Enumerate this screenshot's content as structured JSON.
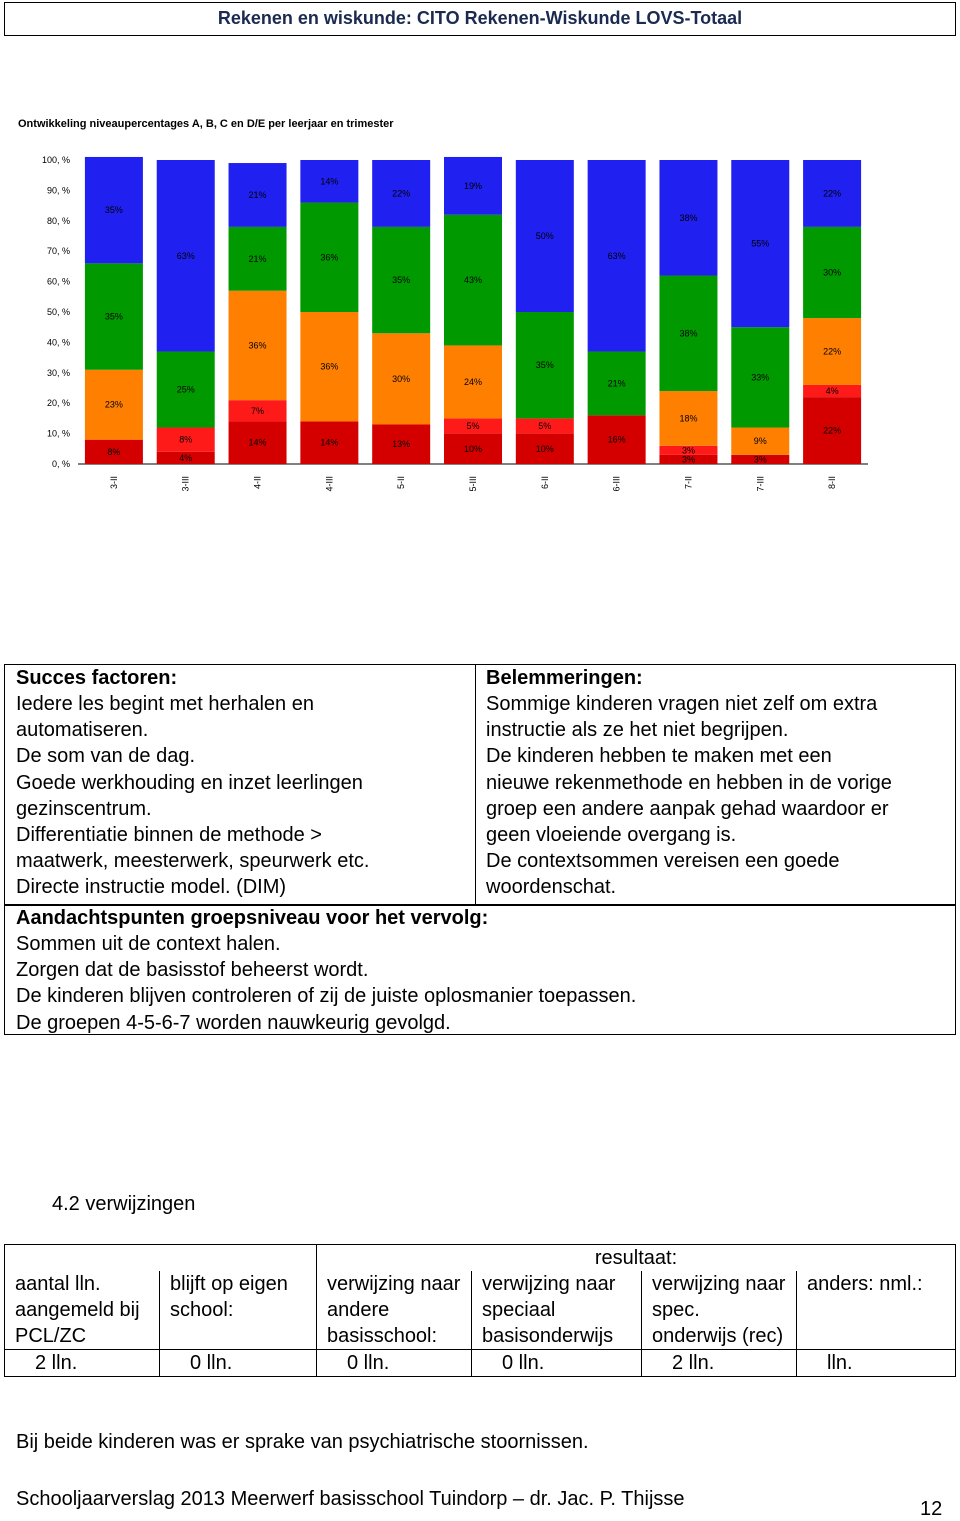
{
  "header": {
    "title": "Rekenen en wiskunde: CITO Rekenen-Wiskunde LOVS-Totaal"
  },
  "chart_data": {
    "type": "stacked_bar",
    "title": "Ontwikkeling niveaupercentages A, B, C en D/E per leerjaar en trimester",
    "categories": [
      "3-II",
      "3-III",
      "4-II",
      "4-III",
      "5-II",
      "5-III",
      "6-II",
      "6-III",
      "7-II",
      "7-III",
      "8-II"
    ],
    "series": [
      {
        "color": "#d40000",
        "values": [
          8,
          4,
          14,
          14,
          13,
          10,
          10,
          16,
          3,
          3,
          22
        ],
        "value_labels": [
          "8%",
          "4%",
          "14%",
          "14%",
          "13%",
          "10%",
          "10%",
          "16%",
          "3%",
          "3%",
          "22%"
        ]
      },
      {
        "color": "#ff1a1a",
        "values": [
          null,
          8,
          7,
          null,
          null,
          5,
          5,
          null,
          3,
          null,
          4
        ],
        "value_labels": [
          null,
          "8%",
          "7%",
          null,
          null,
          "5%",
          "5%",
          null,
          "3%",
          null,
          "4%"
        ]
      },
      {
        "color": "#ff8000",
        "values": [
          23,
          null,
          36,
          36,
          30,
          24,
          null,
          null,
          18,
          9,
          22
        ],
        "value_labels": [
          "23%",
          null,
          "36%",
          "36%",
          "30%",
          "24%",
          null,
          null,
          "18%",
          "9%",
          "22%"
        ]
      },
      {
        "color": "#009a00",
        "values": [
          35,
          25,
          21,
          36,
          35,
          43,
          35,
          21,
          38,
          33,
          30
        ],
        "value_labels": [
          "35%",
          "25%",
          "21%",
          "36%",
          "35%",
          "43%",
          "35%",
          "21%",
          "38%",
          "33%",
          "30%"
        ]
      },
      {
        "color": "#2020f0",
        "values": [
          35,
          63,
          21,
          14,
          22,
          19,
          50,
          63,
          38,
          55,
          22
        ],
        "value_labels": [
          "35%",
          "63%",
          "21%",
          "14%",
          "22%",
          "19%",
          "50%",
          "63%",
          "38%",
          "55%",
          "22%"
        ]
      }
    ],
    "ylim": [
      0,
      100
    ],
    "yticks": [
      {
        "value": 0,
        "label": "0, %"
      },
      {
        "value": 10,
        "label": "10, %"
      },
      {
        "value": 20,
        "label": "20, %"
      },
      {
        "value": 30,
        "label": "30, %"
      },
      {
        "value": 40,
        "label": "40, %"
      },
      {
        "value": 50,
        "label": "50, %"
      },
      {
        "value": 60,
        "label": "60, %"
      },
      {
        "value": 70,
        "label": "70, %"
      },
      {
        "value": 80,
        "label": "80, %"
      },
      {
        "value": 90,
        "label": "90, %"
      },
      {
        "value": 100,
        "label": "100, %"
      }
    ]
  },
  "success": {
    "title": "Succes factoren:",
    "lines": [
      "Iedere les begint met herhalen en",
      "automatiseren.",
      "De som van de dag.",
      "Goede werkhouding en inzet leerlingen",
      "gezinscentrum.",
      "Differentiatie binnen de methode >",
      "maatwerk, meesterwerk, speurwerk etc.",
      "Directe instructie model. (DIM)"
    ]
  },
  "obstacles": {
    "title": "Belemmeringen:",
    "lines": [
      "Sommige kinderen vragen niet zelf om extra",
      "instructie als ze het niet begrijpen.",
      "De kinderen hebben te maken met een",
      "nieuwe rekenmethode en hebben in de vorige",
      "groep een andere aanpak gehad waardoor er",
      "geen vloeiende overgang is.",
      "De contextsommen vereisen een goede",
      "woordenschat."
    ]
  },
  "attention": {
    "title": "Aandachtspunten groepsniveau voor het vervolg:",
    "lines": [
      "Sommen uit de context halen.",
      "Zorgen dat de basisstof beheerst wordt.",
      "De kinderen blijven controleren of zij de juiste oplosmanier toepassen.",
      "De groepen 4-5-6-7 worden nauwkeurig gevolgd."
    ]
  },
  "section_title": "4.2 verwijzingen",
  "table": {
    "group_header": "resultaat:",
    "columns": [
      "aantal lln. aangemeld bij PCL/ZC",
      "blijft op eigen school:",
      "verwijzing naar andere basisschool:",
      "verwijzing naar speciaal basisonderwijs",
      "verwijzing naar spec. onderwijs (rec)",
      "anders: nml.:"
    ],
    "rows": [
      [
        "2 lln.",
        "0 lln.",
        "0 lln.",
        "0 lln.",
        "2 lln.",
        "lln."
      ]
    ]
  },
  "note": "Bij beide kinderen was er sprake van psychiatrische stoornissen.",
  "footer": {
    "text": "Schooljaarverslag 2013 Meerwerf basisschool Tuindorp – dr. Jac. P. Thijsse",
    "page": "12"
  }
}
